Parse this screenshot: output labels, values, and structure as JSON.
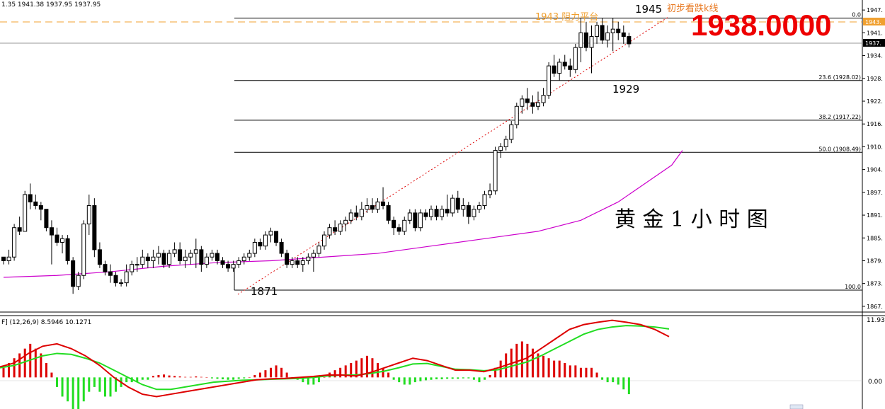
{
  "header": {
    "ohlc_text": "1.35 1941.38 1937.95 1937.95",
    "macd_text": "F] (12,26,9) 8.5946 10.1271"
  },
  "annotations": {
    "resistance_label": "1943  阻力平台",
    "bearish_label": "初步看跌k线",
    "high_label": "1945",
    "low_label": "1871",
    "pullback_label": "1929",
    "big_price": "1938.0000",
    "chart_title": "黄 金 1 小 时 图"
  },
  "fib_levels": [
    {
      "label": "0.0",
      "price": 1945.0
    },
    {
      "label": "23.6 (1928.02)",
      "price": 1928.02
    },
    {
      "label": "38.2 (1917.22)",
      "price": 1917.22
    },
    {
      "label": "50.0 (1908.49)",
      "price": 1908.49
    },
    {
      "label": "100.0",
      "price": 1871.0
    }
  ],
  "price_axis": {
    "ticks": [
      "1947.",
      "1941.",
      "1934.",
      "1928.",
      "1922.",
      "1916.",
      "1910.",
      "1904.",
      "1897.",
      "1891.",
      "1885.",
      "1879.",
      "1873.",
      "1867."
    ],
    "tag_1943": "1943.",
    "tag_current": "1937."
  },
  "macd_axis": {
    "top_label": "11.930",
    "zero_label": "0.00"
  },
  "colors": {
    "up": "#000000",
    "down": "#000000",
    "ma": "#cc00cc",
    "macd_line": "#dd0000",
    "signal_line": "#22dd22",
    "hist_pos": "#dd0000",
    "hist_neg": "#22dd22",
    "resistance": "#f0a030",
    "big_price": "#ee0000",
    "trend": "#dd0000"
  },
  "chart_data": {
    "type": "candlestick",
    "timeframe": "1 hour",
    "ylim": [
      1866,
      1948
    ],
    "candles": [
      [
        1880,
        1880,
        1878,
        1879
      ],
      [
        1879,
        1882,
        1878,
        1880
      ],
      [
        1880,
        1889,
        1879,
        1888
      ],
      [
        1888,
        1891,
        1886,
        1887
      ],
      [
        1887,
        1898,
        1887,
        1897
      ],
      [
        1897,
        1900,
        1893,
        1895
      ],
      [
        1895,
        1897,
        1893,
        1894
      ],
      [
        1894,
        1895,
        1890,
        1893
      ],
      [
        1893,
        1893,
        1887,
        1888
      ],
      [
        1888,
        1890,
        1878,
        1886
      ],
      [
        1886,
        1888,
        1883,
        1884
      ],
      [
        1884,
        1886,
        1881,
        1885
      ],
      [
        1885,
        1886,
        1878,
        1879
      ],
      [
        1879,
        1880,
        1870,
        1872
      ],
      [
        1872,
        1876,
        1871,
        1875
      ],
      [
        1875,
        1890,
        1874,
        1889
      ],
      [
        1889,
        1897,
        1886,
        1894
      ],
      [
        1894,
        1896,
        1880,
        1882
      ],
      [
        1882,
        1884,
        1877,
        1878
      ],
      [
        1878,
        1879,
        1875,
        1876
      ],
      [
        1876,
        1878,
        1873,
        1875
      ],
      [
        1875,
        1876,
        1872,
        1873
      ],
      [
        1873,
        1874,
        1872,
        1873
      ],
      [
        1873,
        1878,
        1872,
        1876
      ],
      [
        1876,
        1879,
        1875,
        1878
      ],
      [
        1878,
        1880,
        1876,
        1878
      ],
      [
        1878,
        1882,
        1877,
        1880
      ],
      [
        1880,
        1881,
        1877,
        1879
      ],
      [
        1879,
        1882,
        1877,
        1880
      ],
      [
        1880,
        1883,
        1878,
        1881
      ],
      [
        1881,
        1882,
        1877,
        1878
      ],
      [
        1878,
        1882,
        1877,
        1881
      ],
      [
        1881,
        1884,
        1880,
        1882
      ],
      [
        1882,
        1884,
        1878,
        1879
      ],
      [
        1879,
        1882,
        1877,
        1880
      ],
      [
        1880,
        1882,
        1878,
        1881
      ],
      [
        1881,
        1885,
        1877,
        1882
      ],
      [
        1882,
        1883,
        1876,
        1878
      ],
      [
        1878,
        1881,
        1877,
        1880
      ],
      [
        1880,
        1882,
        1879,
        1881
      ],
      [
        1881,
        1882,
        1878,
        1879
      ],
      [
        1879,
        1880,
        1877,
        1878
      ],
      [
        1878,
        1879,
        1876,
        1877
      ],
      [
        1877,
        1879,
        1876,
        1878
      ],
      [
        1878,
        1880,
        1877,
        1879
      ],
      [
        1879,
        1881,
        1878,
        1880
      ],
      [
        1880,
        1882,
        1879,
        1881
      ],
      [
        1881,
        1885,
        1880,
        1884
      ],
      [
        1884,
        1885,
        1882,
        1883
      ],
      [
        1883,
        1887,
        1882,
        1886
      ],
      [
        1886,
        1888,
        1884,
        1887
      ],
      [
        1887,
        1887,
        1883,
        1884
      ],
      [
        1884,
        1885,
        1880,
        1881
      ],
      [
        1881,
        1882,
        1877,
        1878
      ],
      [
        1878,
        1880,
        1877,
        1879
      ],
      [
        1879,
        1880,
        1877,
        1878
      ],
      [
        1878,
        1880,
        1876,
        1879
      ],
      [
        1879,
        1881,
        1878,
        1880
      ],
      [
        1880,
        1882,
        1876,
        1881
      ],
      [
        1881,
        1884,
        1880,
        1883
      ],
      [
        1883,
        1887,
        1882,
        1886
      ],
      [
        1886,
        1889,
        1885,
        1888
      ],
      [
        1888,
        1890,
        1886,
        1887
      ],
      [
        1887,
        1890,
        1886,
        1889
      ],
      [
        1889,
        1891,
        1887,
        1890
      ],
      [
        1890,
        1893,
        1889,
        1892
      ],
      [
        1892,
        1894,
        1890,
        1891
      ],
      [
        1891,
        1895,
        1890,
        1893
      ],
      [
        1893,
        1896,
        1892,
        1894
      ],
      [
        1894,
        1896,
        1892,
        1893
      ],
      [
        1893,
        1896,
        1892,
        1895
      ],
      [
        1895,
        1899,
        1893,
        1894
      ],
      [
        1894,
        1895,
        1889,
        1890
      ],
      [
        1890,
        1891,
        1886,
        1888
      ],
      [
        1888,
        1889,
        1886,
        1887
      ],
      [
        1887,
        1891,
        1886,
        1890
      ],
      [
        1890,
        1893,
        1889,
        1892
      ],
      [
        1892,
        1893,
        1887,
        1888
      ],
      [
        1888,
        1893,
        1887,
        1892
      ],
      [
        1892,
        1893,
        1890,
        1891
      ],
      [
        1891,
        1894,
        1890,
        1893
      ],
      [
        1893,
        1894,
        1890,
        1891
      ],
      [
        1891,
        1894,
        1890,
        1893
      ],
      [
        1893,
        1897,
        1891,
        1892
      ],
      [
        1892,
        1897,
        1891,
        1896
      ],
      [
        1896,
        1898,
        1892,
        1893
      ],
      [
        1893,
        1896,
        1891,
        1894
      ],
      [
        1894,
        1895,
        1889,
        1891
      ],
      [
        1891,
        1894,
        1890,
        1893
      ],
      [
        1893,
        1895,
        1892,
        1894
      ],
      [
        1894,
        1898,
        1893,
        1897
      ],
      [
        1897,
        1900,
        1896,
        1898
      ],
      [
        1898,
        1910,
        1897,
        1909
      ],
      [
        1909,
        1911,
        1907,
        1910
      ],
      [
        1910,
        1913,
        1909,
        1912
      ],
      [
        1912,
        1917,
        1911,
        1916
      ],
      [
        1916,
        1922,
        1915,
        1921
      ],
      [
        1921,
        1924,
        1919,
        1923
      ],
      [
        1923,
        1926,
        1920,
        1922
      ],
      [
        1922,
        1924,
        1919,
        1921
      ],
      [
        1921,
        1925,
        1920,
        1922
      ],
      [
        1922,
        1926,
        1921,
        1924
      ],
      [
        1924,
        1933,
        1923,
        1932
      ],
      [
        1932,
        1935,
        1929,
        1930
      ],
      [
        1930,
        1934,
        1928,
        1933
      ],
      [
        1933,
        1935,
        1931,
        1932
      ],
      [
        1932,
        1934,
        1929,
        1931
      ],
      [
        1931,
        1938,
        1930,
        1937
      ],
      [
        1937,
        1945,
        1933,
        1941
      ],
      [
        1941,
        1944,
        1936,
        1937
      ],
      [
        1937,
        1943,
        1930,
        1940
      ],
      [
        1940,
        1944,
        1938,
        1943
      ],
      [
        1943,
        1945,
        1938,
        1939
      ],
      [
        1939,
        1943,
        1937,
        1941
      ],
      [
        1941,
        1945,
        1936,
        1942
      ],
      [
        1942,
        1944,
        1939,
        1941
      ],
      [
        1941,
        1943,
        1938,
        1940
      ],
      [
        1940,
        1941,
        1937,
        1938
      ]
    ],
    "ma_curve": [
      [
        0,
        1874.5
      ],
      [
        10,
        1875
      ],
      [
        20,
        1876
      ],
      [
        30,
        1877.5
      ],
      [
        40,
        1878.5
      ],
      [
        50,
        1879
      ],
      [
        60,
        1880
      ],
      [
        70,
        1881
      ],
      [
        80,
        1883
      ],
      [
        90,
        1885
      ],
      [
        100,
        1887
      ],
      [
        108,
        1890
      ],
      [
        115,
        1895
      ],
      [
        120,
        1900
      ],
      [
        125,
        1905
      ],
      [
        127,
        1909
      ]
    ],
    "macd": {
      "hist": [
        2,
        3,
        4,
        5,
        6,
        7,
        6,
        5,
        3,
        1,
        -2,
        -4,
        -5,
        -7,
        -7,
        -5,
        -3,
        -2,
        -3,
        -4,
        -4,
        -3,
        -2,
        -1,
        -1,
        -1,
        -0.5,
        -0.5,
        0.3,
        0.5,
        0.6,
        0.4,
        0.3,
        0.2,
        0.1,
        0.1,
        0.2,
        0.1,
        0.0,
        -0.2,
        -0.3,
        -0.4,
        -0.5,
        -0.5,
        -0.3,
        -0.2,
        0.0,
        0.5,
        1,
        1.5,
        2,
        2.5,
        2,
        1,
        0,
        -0.5,
        -1,
        -1.5,
        -1.5,
        -1,
        0,
        1,
        1.5,
        2,
        2.5,
        3,
        3.5,
        4,
        4.5,
        4,
        3,
        2,
        1,
        -0.5,
        -1,
        -1.5,
        -1.5,
        -1,
        -0.8,
        -0.6,
        -0.5,
        -0.4,
        -0.4,
        -0.3,
        -0.3,
        -0.3,
        -0.2,
        -0.2,
        -0.5,
        -1,
        -0.5,
        0.5,
        2,
        3.5,
        5,
        6,
        7,
        7.5,
        7,
        6,
        5,
        4.5,
        4,
        3.5,
        3.5,
        3,
        2.5,
        2.5,
        2,
        2,
        2,
        1,
        -0.5,
        -1,
        -1,
        -1.5,
        -2.5,
        -3.5
      ],
      "macd_line": [
        2.2,
        3,
        5,
        6.5,
        7,
        6,
        4.5,
        2.5,
        0,
        -2,
        -3.5,
        -4,
        -3.5,
        -3,
        -2.5,
        -2,
        -1.5,
        -1,
        -0.5,
        -0.3,
        -0.2,
        0,
        0.2,
        0.5,
        0.5,
        0.3,
        1,
        2,
        3,
        4,
        3.5,
        2.5,
        1.5,
        1.5,
        1.2,
        2,
        3,
        4,
        6,
        8,
        10,
        11,
        11.5,
        11.9,
        11.5,
        11,
        10,
        8.5
      ],
      "signal_line": [
        2,
        2.5,
        3.5,
        4.5,
        5,
        4.8,
        4,
        3,
        1.5,
        0,
        -1.5,
        -2.5,
        -2.5,
        -2,
        -1.5,
        -1,
        -0.8,
        -0.6,
        -0.5,
        -0.4,
        -0.3,
        -0.2,
        0,
        0.3,
        0.5,
        0.5,
        0.8,
        1.3,
        2,
        2.8,
        2.9,
        2.3,
        1.7,
        1.6,
        1.4,
        1.6,
        2.4,
        3.2,
        4.5,
        6,
        7.5,
        9,
        10,
        10.5,
        10.8,
        10.7,
        10.5,
        10.1
      ],
      "ylim": [
        -6,
        12
      ]
    }
  }
}
